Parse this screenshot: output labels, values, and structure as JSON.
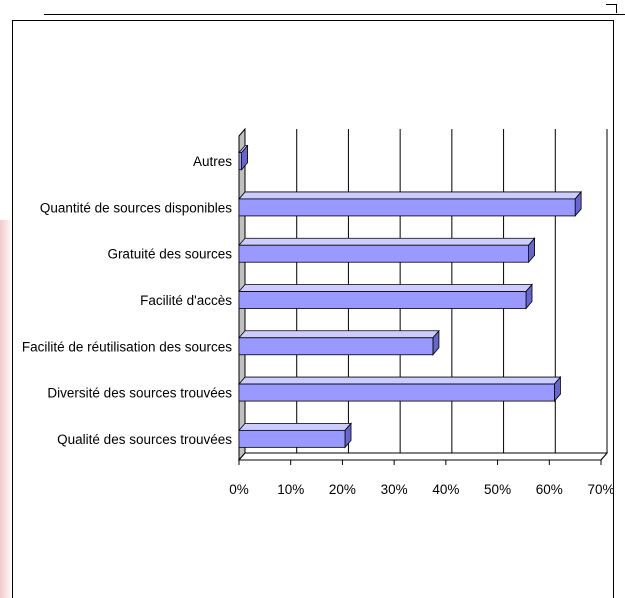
{
  "chart_data": {
    "type": "bar",
    "orientation": "horizontal",
    "categories": [
      "Autres",
      "Quantité de sources disponibles",
      "Gratuité des sources",
      "Facilité d'accès",
      "Facilité de réutilisation des sources",
      "Diversité des sources trouvées",
      "Qualité des sources trouvées"
    ],
    "values": [
      0.5,
      65,
      56,
      55.5,
      37.5,
      61,
      20.5
    ],
    "xlim": [
      0,
      70
    ],
    "xticks": [
      "0%",
      "10%",
      "20%",
      "30%",
      "40%",
      "50%",
      "60%",
      "70%"
    ],
    "title": "",
    "xlabel": "",
    "ylabel": "",
    "grid": "vertical",
    "bar_color": "#9999ff",
    "bar_top_color": "#ccccff",
    "bar_side_color": "#6666cc",
    "wall_color": "#c0c0c0"
  }
}
